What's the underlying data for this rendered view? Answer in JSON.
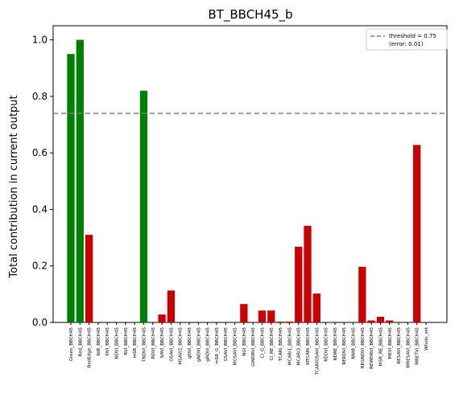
{
  "chart_data": {
    "type": "bar",
    "title": "BT_BBCH45_b",
    "xlabel": "",
    "ylabel": "Total contribution in current output",
    "ylim": [
      0,
      1.05
    ],
    "yticks": [
      "0.0",
      "0.2",
      "0.4",
      "0.6",
      "0.8",
      "1.0"
    ],
    "grid": false,
    "threshold": {
      "value": 0.74,
      "legend_line1": "threshold = 0.75",
      "legend_line2": "(error: 0.01)",
      "color": "#808080"
    },
    "legend_position": "top-right",
    "colors": {
      "above": "#008000",
      "below": "#cc0000"
    },
    "categories": [
      "Green_BBCH45",
      "Red_BBCH45",
      "RedEdge_BBCH45",
      "NIR_BBCH45",
      "DVI_BBCH45",
      "NDVI_BBCH45",
      "RVI_BBCH45",
      "mSR_BBCH45",
      "TNDVI_BBCH45",
      "RDVI_BBCH45",
      "SAVI_BBCH45",
      "OSAVI_BBCH45",
      "MSAVI2_BBCH45",
      "gDVI_BBCH45",
      "gNDVI_BBCH45",
      "gRDVI_BBCH45",
      "mSR_G_BBCH45",
      "GSAVI_BBCH45",
      "MGSAVI_BBCH45",
      "NGI_BBCH45",
      "GWDRVI_BBCH45",
      "CI_G_BBCH45",
      "CI_RE_BBCH45",
      "TCARI_BBCH45",
      "MCARI1_BBCH45",
      "MCARI2_BBCH45",
      "MTCARI_BBCH45",
      "TCARIOSAVI_BBCH45",
      "REDVI_BBCH45",
      "NDRE_BBCH45",
      "RERDVI_BBCH45",
      "NNIR_BBCH45",
      "REGNDVI_BBCH45",
      "REWDRVI_BBCH45",
      "MSR_RE_BBCH45",
      "MEVI_BBCH45",
      "RESAVI_BBCH45",
      "MRESAVI_BBCH45",
      "MRETVI_BBCH45",
      "Whole_set"
    ],
    "values": [
      0.95,
      1.0,
      0.31,
      0,
      0,
      0,
      0,
      0,
      0.82,
      0,
      0.028,
      0.113,
      0,
      0,
      0,
      0,
      0,
      0,
      0,
      0.065,
      0,
      0.042,
      0.042,
      0.003,
      0.003,
      0.268,
      0.342,
      0.102,
      0,
      0,
      0,
      0,
      0.197,
      0.007,
      0.02,
      0.007,
      0,
      0,
      0.628,
      0
    ]
  }
}
